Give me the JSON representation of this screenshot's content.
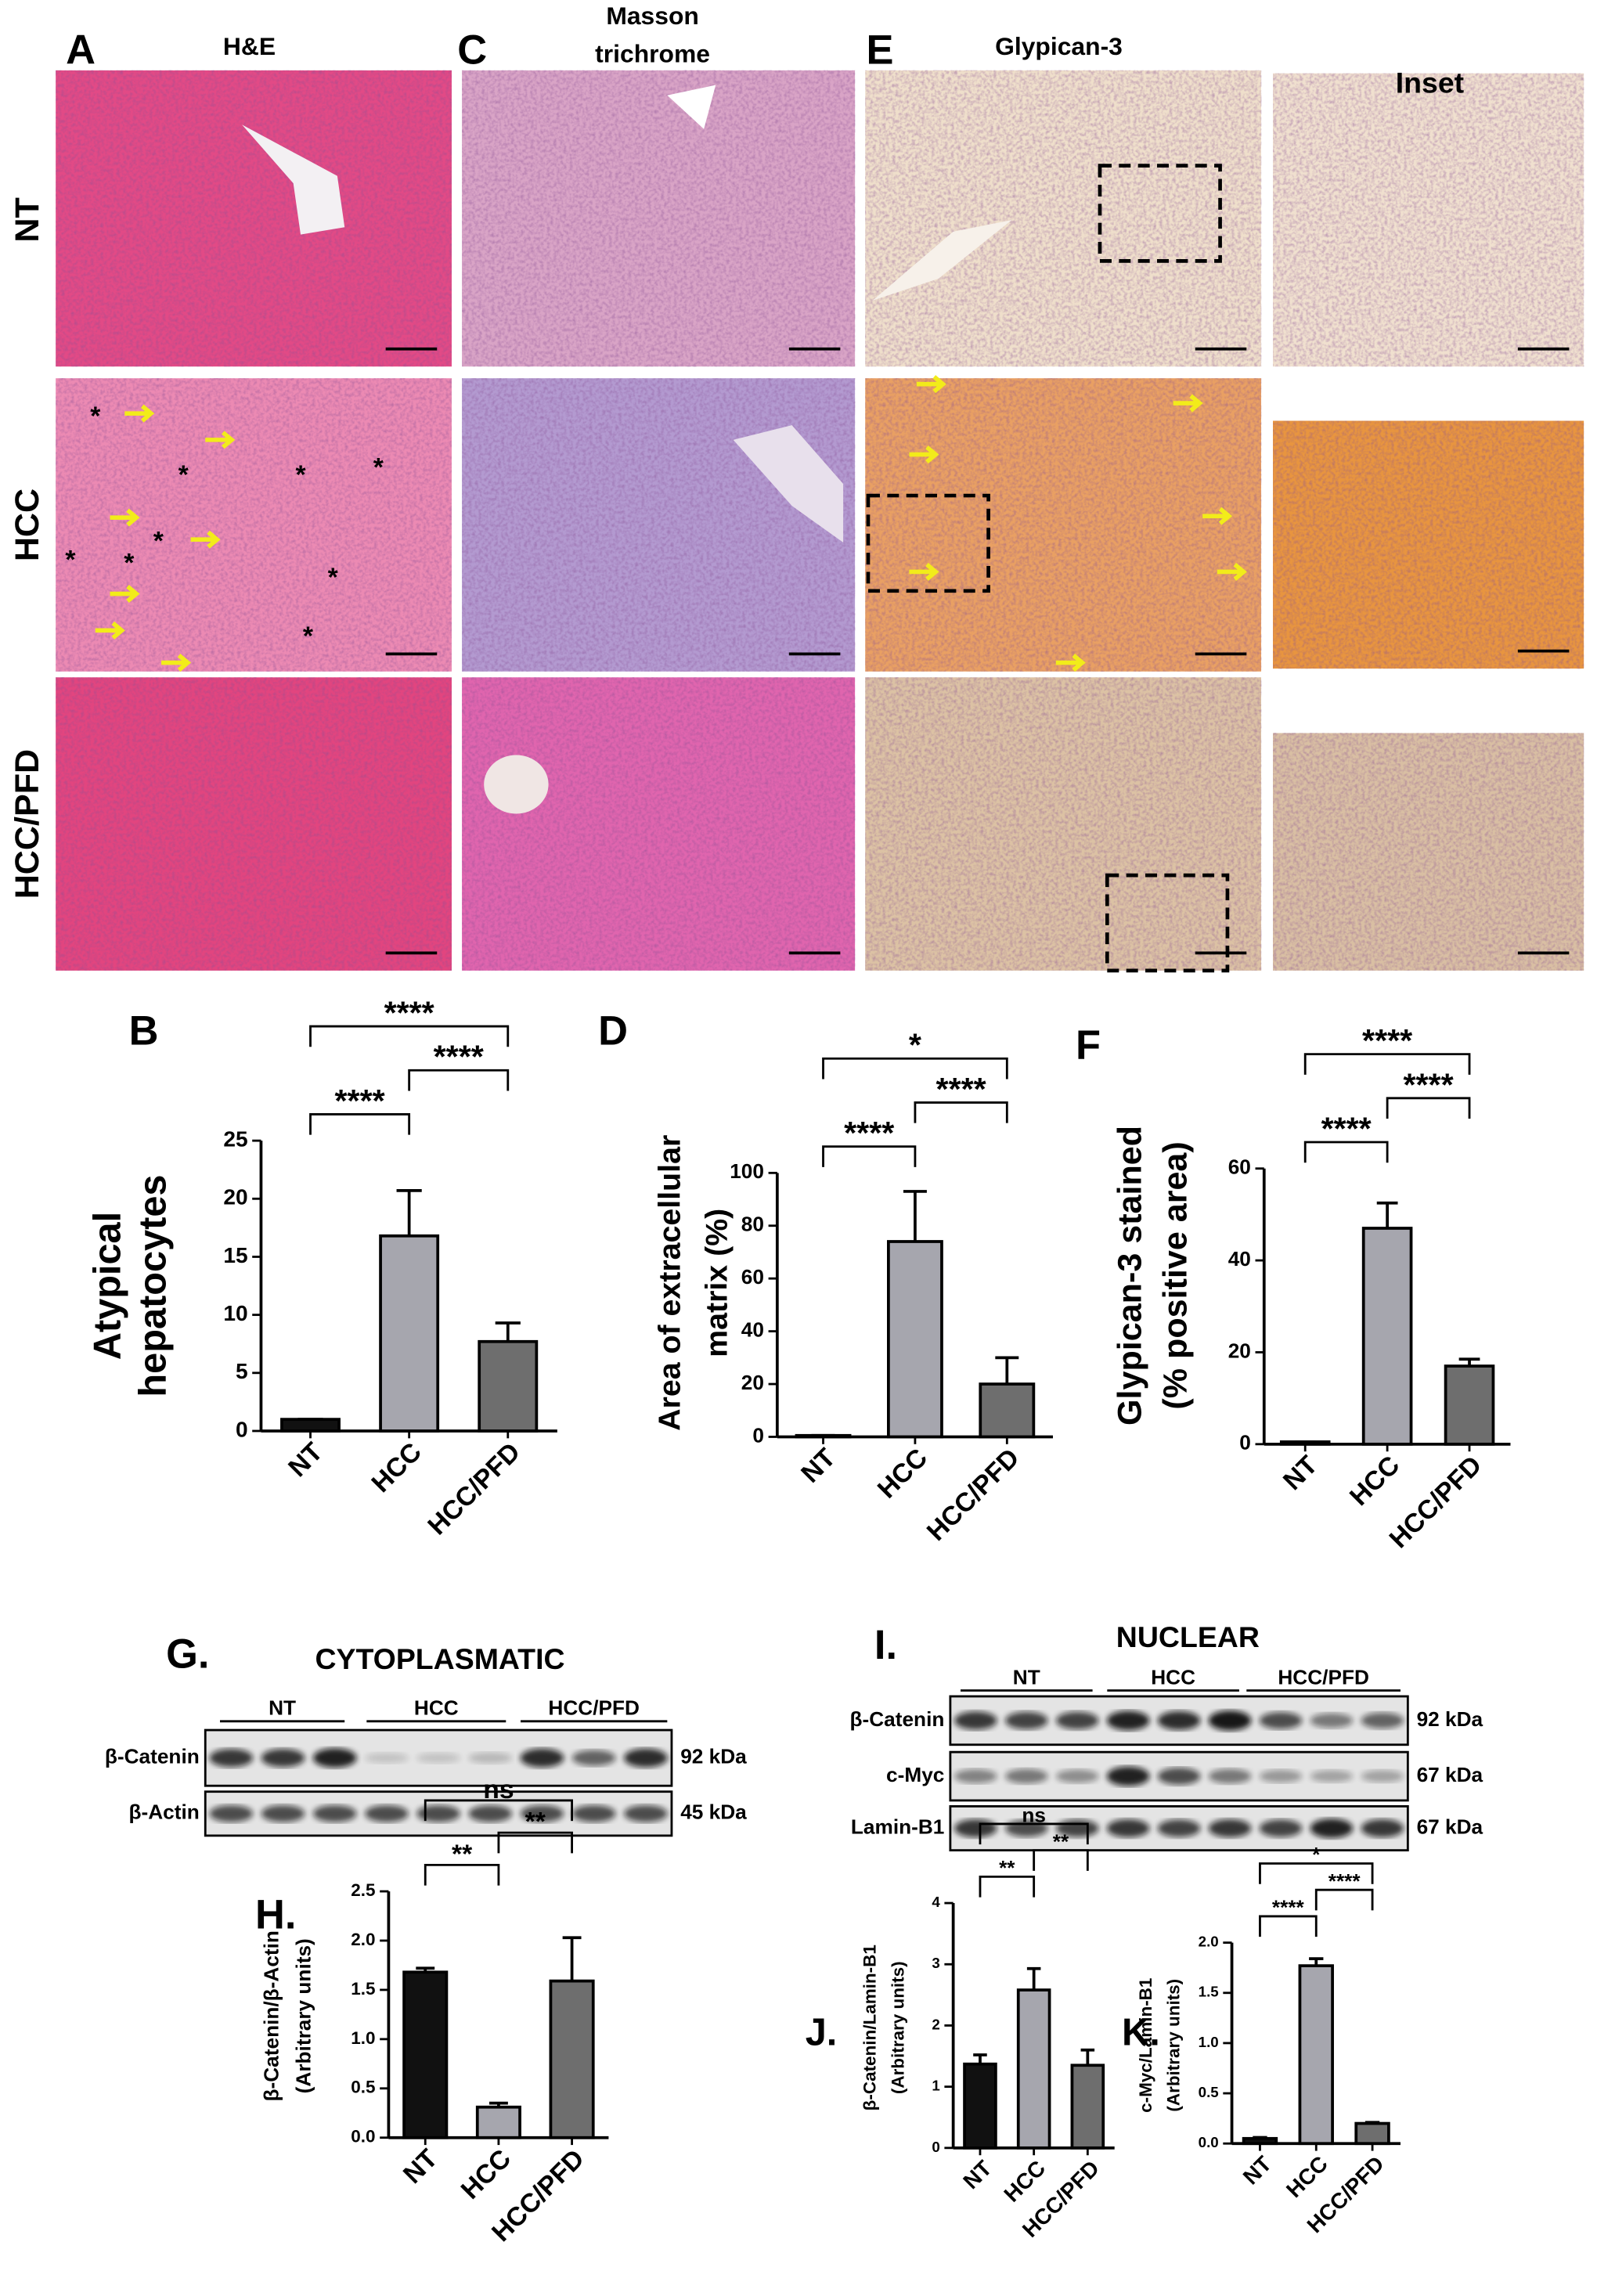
{
  "micrographs": {
    "columns": [
      {
        "letter": "A",
        "title": [
          "H&E"
        ]
      },
      {
        "letter": "C",
        "title": [
          "Masson",
          "trichrome"
        ]
      },
      {
        "letter": "E",
        "title": [
          "Glypican-3"
        ]
      },
      {
        "title": [
          "Inset"
        ]
      }
    ],
    "rows": [
      "NT",
      "HCC",
      "HCC/PFD"
    ],
    "asterisk": "*"
  },
  "blots": [
    {
      "letter": "G.",
      "title": "CYTOPLASMATIC",
      "groups": [
        "NT",
        "HCC",
        "HCC/PFD"
      ],
      "rows": [
        {
          "label": "β-Catenin",
          "size": "92 kDa"
        },
        {
          "label": "β-Actin",
          "size": "45 kDa"
        }
      ]
    },
    {
      "letter": "I.",
      "title": "NUCLEAR",
      "groups": [
        "NT",
        "HCC",
        "HCC/PFD"
      ],
      "rows": [
        {
          "label": "β-Catenin",
          "size": "92 kDa"
        },
        {
          "label": "c-Myc",
          "size": "67 kDa"
        },
        {
          "label": "Lamin-B1",
          "size": "67 kDa"
        }
      ]
    }
  ],
  "chart_data": [
    {
      "type": "bar",
      "letter": "B",
      "ylabel": [
        "Atypical",
        "hepatocytes"
      ],
      "categories": [
        "NT",
        "HCC",
        "HCC/PFD"
      ],
      "values": [
        1,
        16.8,
        7.7
      ],
      "errors": [
        0,
        3.9,
        1.6
      ],
      "colors": [
        "#111111",
        "#a6a6ae",
        "#6e6e6e"
      ],
      "ylim": [
        0,
        25
      ],
      "yticks": [
        0,
        5,
        10,
        15,
        20,
        25
      ],
      "comparisons": [
        {
          "between": [
            0,
            1
          ],
          "label": "****"
        },
        {
          "between": [
            1,
            2
          ],
          "label": "****"
        },
        {
          "between": [
            0,
            2
          ],
          "label": "****"
        }
      ]
    },
    {
      "type": "bar",
      "letter": "D",
      "ylabel": [
        "Area of extracellular",
        "matrix  (%)"
      ],
      "categories": [
        "NT",
        "HCC",
        "HCC/PFD"
      ],
      "values": [
        0.5,
        74,
        20
      ],
      "errors": [
        0,
        19,
        10
      ],
      "colors": [
        "#111111",
        "#a6a6ae",
        "#6e6e6e"
      ],
      "ylim": [
        0,
        100
      ],
      "yticks": [
        0,
        20,
        40,
        60,
        80,
        100
      ],
      "comparisons": [
        {
          "between": [
            0,
            1
          ],
          "label": "****"
        },
        {
          "between": [
            1,
            2
          ],
          "label": "****"
        },
        {
          "between": [
            0,
            2
          ],
          "label": "*"
        }
      ]
    },
    {
      "type": "bar",
      "letter": "F",
      "ylabel": [
        "Glypican-3 stained",
        "(% positive area)"
      ],
      "categories": [
        "NT",
        "HCC",
        "HCC/PFD"
      ],
      "values": [
        0.5,
        47,
        17
      ],
      "errors": [
        0,
        5.5,
        1.5
      ],
      "colors": [
        "#111111",
        "#a6a6ae",
        "#6e6e6e"
      ],
      "ylim": [
        0,
        60
      ],
      "yticks": [
        0,
        20,
        40,
        60
      ],
      "comparisons": [
        {
          "between": [
            0,
            1
          ],
          "label": "****"
        },
        {
          "between": [
            1,
            2
          ],
          "label": "****"
        },
        {
          "between": [
            0,
            2
          ],
          "label": "****"
        }
      ]
    },
    {
      "type": "bar",
      "letter": "H.",
      "ylabel": [
        "β-Catenin/β-Actin",
        "(Arbitrary units)"
      ],
      "categories": [
        "NT",
        "HCC",
        "HCC/PFD"
      ],
      "values": [
        1.68,
        0.31,
        1.59
      ],
      "errors": [
        0.04,
        0.04,
        0.44
      ],
      "colors": [
        "#111111",
        "#a6a6ae",
        "#6e6e6e"
      ],
      "ylim": [
        0,
        2.5
      ],
      "yticks": [
        {
          "value": 0,
          "label": "0.0"
        },
        0.5,
        {
          "value": 1,
          "label": "1.0"
        },
        1.5,
        {
          "value": 2,
          "label": "2.0"
        },
        2.5
      ],
      "comparisons": [
        {
          "between": [
            0,
            1
          ],
          "label": "**"
        },
        {
          "between": [
            1,
            2
          ],
          "label": "**"
        },
        {
          "between": [
            0,
            2
          ],
          "label": "ns"
        }
      ]
    },
    {
      "type": "bar",
      "letter": "J.",
      "ylabel": [
        "β-Catenin/Lamin-B1",
        "(Arbitrary units)"
      ],
      "categories": [
        "NT",
        "HCC",
        "HCC/PFD"
      ],
      "values": [
        1.37,
        2.58,
        1.35
      ],
      "errors": [
        0.15,
        0.35,
        0.25
      ],
      "colors": [
        "#111111",
        "#a6a6ae",
        "#6e6e6e"
      ],
      "ylim": [
        0,
        4
      ],
      "yticks": [
        0,
        1,
        2,
        3,
        4
      ],
      "comparisons": [
        {
          "between": [
            0,
            1
          ],
          "label": "**"
        },
        {
          "between": [
            1,
            2
          ],
          "label": "**"
        },
        {
          "between": [
            0,
            2
          ],
          "label": "ns"
        }
      ]
    },
    {
      "type": "bar",
      "letter": "K.",
      "ylabel": [
        "c-Myc/Lamin-B1",
        "(Arbitrary units)"
      ],
      "categories": [
        "NT",
        "HCC",
        "HCC/PFD"
      ],
      "values": [
        0.05,
        1.77,
        0.2
      ],
      "errors": [
        0.01,
        0.07,
        0.01
      ],
      "colors": [
        "#111111",
        "#a6a6ae",
        "#6e6e6e"
      ],
      "ylim": [
        0,
        2
      ],
      "yticks": [
        {
          "value": 0,
          "label": "0.0"
        },
        0.5,
        {
          "value": 1,
          "label": "1.0"
        },
        1.5,
        {
          "value": 2,
          "label": "2.0"
        }
      ],
      "comparisons": [
        {
          "between": [
            0,
            1
          ],
          "label": "****"
        },
        {
          "between": [
            1,
            2
          ],
          "label": "****"
        },
        {
          "between": [
            0,
            2
          ],
          "label": "*"
        }
      ]
    }
  ]
}
